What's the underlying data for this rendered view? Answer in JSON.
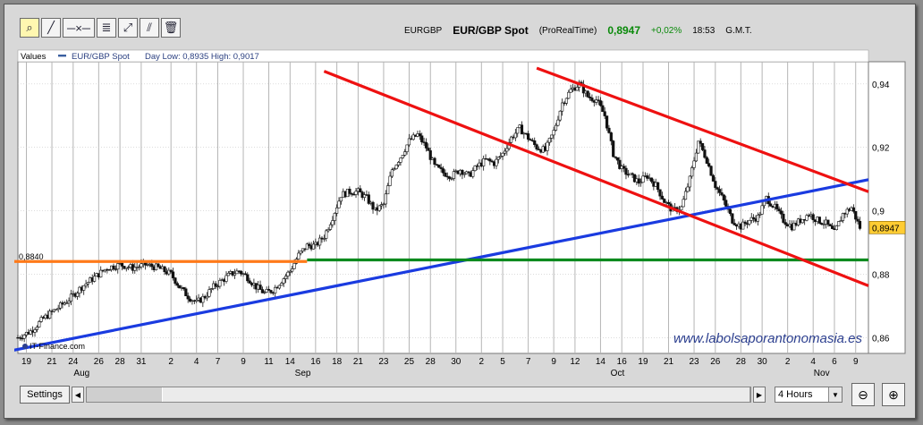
{
  "toolbar": {
    "tools": [
      {
        "name": "zoom-tool-icon",
        "glyph": "🔍"
      },
      {
        "name": "trendline-icon",
        "glyph": "╱"
      },
      {
        "name": "horizontal-line-icon",
        "glyph": "─"
      },
      {
        "name": "fibonacci-icon",
        "glyph": "≣"
      },
      {
        "name": "channel-icon",
        "glyph": "⤢"
      },
      {
        "name": "parallel-lines-icon",
        "glyph": "⫽"
      },
      {
        "name": "trash-icon",
        "glyph": "🗑"
      }
    ]
  },
  "header": {
    "symbol": "EURGBP",
    "name": "EUR/GBP Spot",
    "source": "(ProRealTime)",
    "price": "0,8947",
    "change": "+0,02%",
    "time": "18:53",
    "timezone": "G.M.T."
  },
  "legend": {
    "values_label": "Values",
    "series_label": "EUR/GBP Spot",
    "day_range": "Day Low: 0,8935 High: 0,9017"
  },
  "bottom": {
    "settings_label": "Settings",
    "interval": "4 Hours"
  },
  "colors": {
    "candle": "#111111",
    "channel": "#ee1111",
    "support": "#1a3be0",
    "resistance": "#ff7a1a",
    "level": "#0b8a1e",
    "price_tag": "#ffcc33"
  },
  "chart_data": {
    "type": "candlestick",
    "ylim": [
      0.855,
      0.947
    ],
    "yticks": [
      "0,86",
      "0,88",
      "0,9",
      "0,92",
      "0,94"
    ],
    "ytick_values": [
      0.86,
      0.88,
      0.9,
      0.92,
      0.94
    ],
    "xlim": [
      0,
      200
    ],
    "xticks": [
      {
        "label": "19",
        "x": 2
      },
      {
        "label": "21",
        "x": 8
      },
      {
        "label": "24",
        "x": 13
      },
      {
        "label": "26",
        "x": 19
      },
      {
        "label": "28",
        "x": 24
      },
      {
        "label": "31",
        "x": 29
      },
      {
        "label": "2",
        "x": 36
      },
      {
        "label": "4",
        "x": 42
      },
      {
        "label": "7",
        "x": 47
      },
      {
        "label": "9",
        "x": 53
      },
      {
        "label": "11",
        "x": 59
      },
      {
        "label": "14",
        "x": 64
      },
      {
        "label": "16",
        "x": 70
      },
      {
        "label": "18",
        "x": 75
      },
      {
        "label": "21",
        "x": 80
      },
      {
        "label": "23",
        "x": 86
      },
      {
        "label": "25",
        "x": 92
      },
      {
        "label": "28",
        "x": 97
      },
      {
        "label": "30",
        "x": 103
      },
      {
        "label": "2",
        "x": 109
      },
      {
        "label": "5",
        "x": 114
      },
      {
        "label": "7",
        "x": 120
      },
      {
        "label": "9",
        "x": 126
      },
      {
        "label": "12",
        "x": 131
      },
      {
        "label": "14",
        "x": 137
      },
      {
        "label": "16",
        "x": 142
      },
      {
        "label": "19",
        "x": 147
      },
      {
        "label": "21",
        "x": 153
      },
      {
        "label": "23",
        "x": 159
      },
      {
        "label": "26",
        "x": 164
      },
      {
        "label": "28",
        "x": 170
      },
      {
        "label": "30",
        "x": 175
      },
      {
        "label": "2",
        "x": 181
      },
      {
        "label": "4",
        "x": 187
      },
      {
        "label": "6",
        "x": 192
      },
      {
        "label": "9",
        "x": 197
      }
    ],
    "months": [
      {
        "label": "Aug",
        "x": 15
      },
      {
        "label": "Sep",
        "x": 67
      },
      {
        "label": "Oct",
        "x": 141
      },
      {
        "label": "Nov",
        "x": 189
      }
    ],
    "price_path": [
      [
        0,
        0.86
      ],
      [
        3,
        0.862
      ],
      [
        6,
        0.866
      ],
      [
        9,
        0.869
      ],
      [
        12,
        0.872
      ],
      [
        15,
        0.876
      ],
      [
        18,
        0.879
      ],
      [
        21,
        0.882
      ],
      [
        24,
        0.883
      ],
      [
        27,
        0.882
      ],
      [
        30,
        0.883
      ],
      [
        33,
        0.882
      ],
      [
        36,
        0.88
      ],
      [
        38,
        0.876
      ],
      [
        40,
        0.873
      ],
      [
        42,
        0.871
      ],
      [
        44,
        0.873
      ],
      [
        46,
        0.876
      ],
      [
        48,
        0.878
      ],
      [
        50,
        0.88
      ],
      [
        52,
        0.881
      ],
      [
        54,
        0.879
      ],
      [
        56,
        0.876
      ],
      [
        58,
        0.874
      ],
      [
        60,
        0.875
      ],
      [
        62,
        0.878
      ],
      [
        64,
        0.881
      ],
      [
        66,
        0.886
      ],
      [
        68,
        0.889
      ],
      [
        70,
        0.889
      ],
      [
        72,
        0.892
      ],
      [
        74,
        0.898
      ],
      [
        76,
        0.905
      ],
      [
        78,
        0.906
      ],
      [
        80,
        0.906
      ],
      [
        82,
        0.904
      ],
      [
        84,
        0.9
      ],
      [
        86,
        0.902
      ],
      [
        88,
        0.913
      ],
      [
        90,
        0.917
      ],
      [
        92,
        0.922
      ],
      [
        94,
        0.924
      ],
      [
        96,
        0.92
      ],
      [
        98,
        0.914
      ],
      [
        100,
        0.912
      ],
      [
        102,
        0.911
      ],
      [
        104,
        0.913
      ],
      [
        106,
        0.911
      ],
      [
        108,
        0.914
      ],
      [
        110,
        0.916
      ],
      [
        112,
        0.915
      ],
      [
        114,
        0.918
      ],
      [
        116,
        0.923
      ],
      [
        118,
        0.926
      ],
      [
        120,
        0.923
      ],
      [
        122,
        0.92
      ],
      [
        124,
        0.919
      ],
      [
        126,
        0.925
      ],
      [
        128,
        0.934
      ],
      [
        130,
        0.938
      ],
      [
        132,
        0.94
      ],
      [
        134,
        0.936
      ],
      [
        136,
        0.935
      ],
      [
        138,
        0.93
      ],
      [
        140,
        0.918
      ],
      [
        142,
        0.913
      ],
      [
        144,
        0.911
      ],
      [
        146,
        0.909
      ],
      [
        148,
        0.911
      ],
      [
        150,
        0.908
      ],
      [
        152,
        0.903
      ],
      [
        154,
        0.9
      ],
      [
        156,
        0.901
      ],
      [
        158,
        0.91
      ],
      [
        160,
        0.922
      ],
      [
        162,
        0.916
      ],
      [
        164,
        0.908
      ],
      [
        166,
        0.903
      ],
      [
        168,
        0.897
      ],
      [
        170,
        0.895
      ],
      [
        172,
        0.897
      ],
      [
        174,
        0.898
      ],
      [
        176,
        0.904
      ],
      [
        178,
        0.901
      ],
      [
        180,
        0.897
      ],
      [
        182,
        0.895
      ],
      [
        184,
        0.897
      ],
      [
        186,
        0.899
      ],
      [
        188,
        0.897
      ],
      [
        190,
        0.896
      ],
      [
        192,
        0.893
      ],
      [
        194,
        0.899
      ],
      [
        196,
        0.901
      ],
      [
        198,
        0.8947
      ]
    ],
    "lines": [
      {
        "name": "blue-support-line",
        "color": "#1a3be0",
        "from": [
          -1,
          0.856
        ],
        "to": [
          212,
          0.913
        ]
      },
      {
        "name": "orange-resistance-line",
        "color": "#ff7a1a",
        "from": [
          -1,
          0.884
        ],
        "to": [
          68,
          0.884
        ]
      },
      {
        "name": "green-level-line",
        "color": "#0b8a1e",
        "from": [
          68,
          0.8845
        ],
        "to": [
          212,
          0.8845
        ]
      },
      {
        "name": "red-channel-lower",
        "color": "#ee1111",
        "from": [
          72,
          0.944
        ],
        "to": [
          212,
          0.87
        ]
      },
      {
        "name": "red-channel-upper",
        "color": "#ee1111",
        "from": [
          122,
          0.945
        ],
        "to": [
          212,
          0.9
        ]
      }
    ],
    "level_label": "0,8840",
    "level_value": 0.884,
    "last_price_label": "0,8947",
    "last_price": 0.8947,
    "watermark": "www.labolsaporantonomasia.es",
    "credit": "IT-Finance.com"
  }
}
